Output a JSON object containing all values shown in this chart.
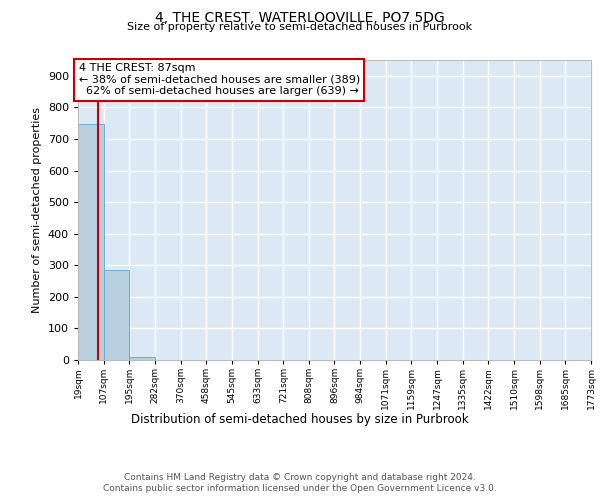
{
  "title": "4, THE CREST, WATERLOOVILLE, PO7 5DG",
  "subtitle": "Size of property relative to semi-detached houses in Purbrook",
  "xlabel": "Distribution of semi-detached houses by size in Purbrook",
  "ylabel": "Number of semi-detached properties",
  "property_size": 87,
  "property_label": "4 THE CREST: 87sqm",
  "pct_smaller": 38,
  "pct_larger": 62,
  "count_smaller": 389,
  "count_larger": 639,
  "bins": [
    19,
    107,
    195,
    282,
    370,
    458,
    545,
    633,
    721,
    808,
    896,
    984,
    1071,
    1159,
    1247,
    1335,
    1422,
    1510,
    1598,
    1685,
    1773
  ],
  "tick_labels": [
    "19sqm",
    "107sqm",
    "195sqm",
    "282sqm",
    "370sqm",
    "458sqm",
    "545sqm",
    "633sqm",
    "721sqm",
    "808sqm",
    "896sqm",
    "984sqm",
    "1071sqm",
    "1159sqm",
    "1247sqm",
    "1335sqm",
    "1422sqm",
    "1510sqm",
    "1598sqm",
    "1685sqm",
    "1773sqm"
  ],
  "counts": [
    748,
    285,
    9,
    0,
    0,
    0,
    0,
    0,
    0,
    0,
    0,
    0,
    0,
    0,
    0,
    0,
    0,
    0,
    0,
    0
  ],
  "bar_color": "#b8cfe0",
  "bar_edge_color": "#6aaed6",
  "background_color": "#dce9f5",
  "grid_color": "#ffffff",
  "annotation_box_color": "#cc0000",
  "property_line_color": "#cc0000",
  "ylim": [
    0,
    950
  ],
  "yticks": [
    0,
    100,
    200,
    300,
    400,
    500,
    600,
    700,
    800,
    900
  ],
  "footer_line1": "Contains HM Land Registry data © Crown copyright and database right 2024.",
  "footer_line2": "Contains public sector information licensed under the Open Government Licence v3.0."
}
